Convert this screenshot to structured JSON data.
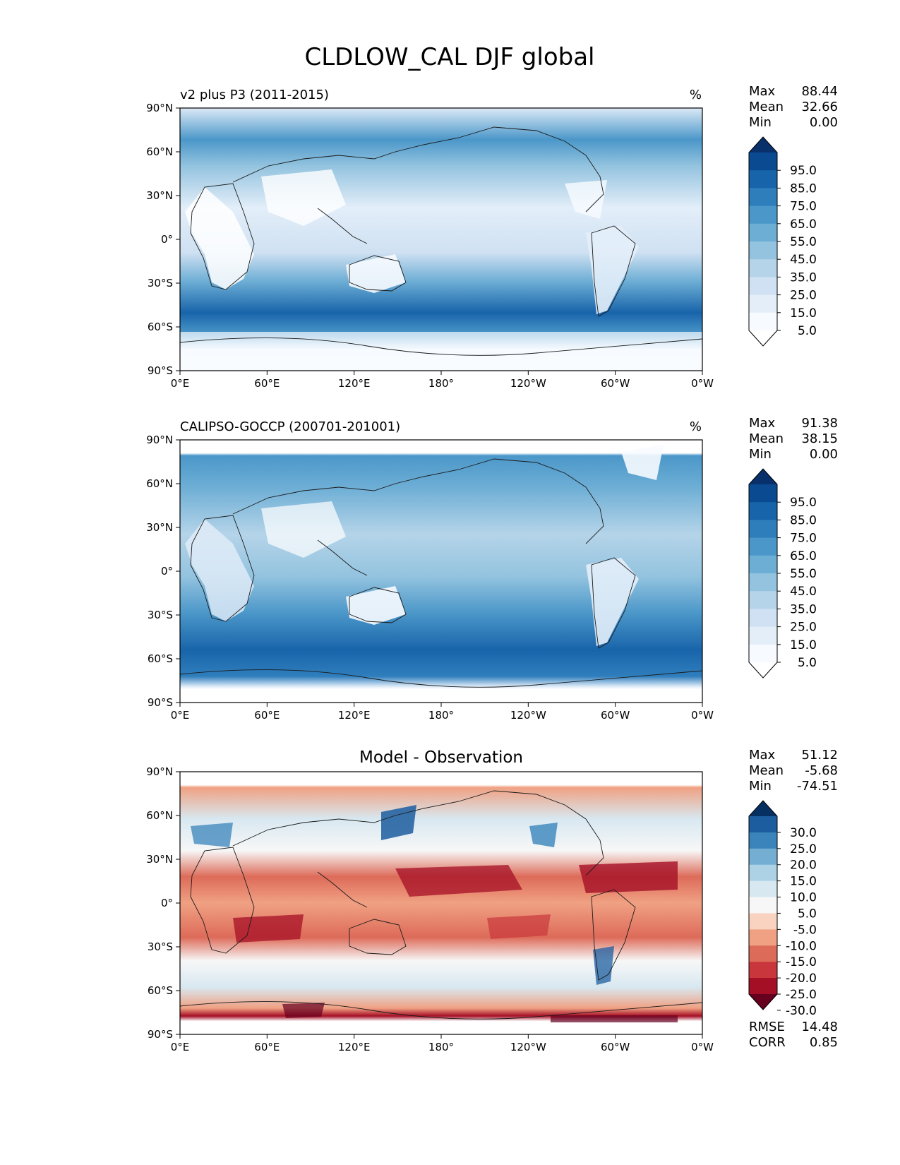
{
  "figure": {
    "title": "CLDLOW_CAL DJF global"
  },
  "axes_labels": {
    "lat_ticks": [
      "90°N",
      "60°N",
      "30°N",
      "0°",
      "30°S",
      "60°S",
      "90°S"
    ],
    "lon_ticks": [
      "0°E",
      "60°E",
      "120°E",
      "180°",
      "120°W",
      "60°W",
      "0°W"
    ]
  },
  "panels": [
    {
      "id": "model",
      "left_title": "v2 plus P3 (2011-2015)",
      "center_title": "",
      "right_title": "%",
      "stats": [
        {
          "label": "Max",
          "value": "88.44"
        },
        {
          "label": "Mean",
          "value": "32.66"
        },
        {
          "label": "Min",
          "value": "0.00"
        }
      ],
      "colorbar": {
        "colors": [
          "#ffffff",
          "#f7fbff",
          "#e3eef9",
          "#cfe1f2",
          "#b5d4e9",
          "#93c3df",
          "#6daed5",
          "#4b97c9",
          "#2f7ebc",
          "#1864aa",
          "#0a4a90",
          "#08306b"
        ],
        "labels": [
          "95.0",
          "85.0",
          "75.0",
          "65.0",
          "55.0",
          "45.0",
          "35.0",
          "25.0",
          "15.0",
          "5.0"
        ]
      },
      "extra_stats": []
    },
    {
      "id": "obs",
      "left_title": "CALIPSO-GOCCP (200701-201001)",
      "center_title": "",
      "right_title": "%",
      "stats": [
        {
          "label": "Max",
          "value": "91.38"
        },
        {
          "label": "Mean",
          "value": "38.15"
        },
        {
          "label": "Min",
          "value": "0.00"
        }
      ],
      "colorbar": {
        "colors": [
          "#ffffff",
          "#f7fbff",
          "#e3eef9",
          "#cfe1f2",
          "#b5d4e9",
          "#93c3df",
          "#6daed5",
          "#4b97c9",
          "#2f7ebc",
          "#1864aa",
          "#0a4a90",
          "#08306b"
        ],
        "labels": [
          "95.0",
          "85.0",
          "75.0",
          "65.0",
          "55.0",
          "45.0",
          "35.0",
          "25.0",
          "15.0",
          "5.0"
        ]
      },
      "extra_stats": []
    },
    {
      "id": "diff",
      "left_title": "",
      "center_title": "Model - Observation",
      "right_title": "",
      "stats": [
        {
          "label": "Max",
          "value": "51.12"
        },
        {
          "label": "Mean",
          "value": "-5.68"
        },
        {
          "label": "Min",
          "value": "-74.51"
        }
      ],
      "colorbar": {
        "colors": [
          "#67001f",
          "#a50f26",
          "#c9373c",
          "#dd6b59",
          "#f0a183",
          "#f9d3bf",
          "#f7f7f7",
          "#d8e8f1",
          "#add2e6",
          "#74aed3",
          "#3a84bb",
          "#1c5d9f",
          "#053061"
        ],
        "labels": [
          "30.0",
          "25.0",
          "20.0",
          "15.0",
          "10.0",
          "5.0",
          "-5.0",
          "-10.0",
          "-15.0",
          "-20.0",
          "-25.0",
          "-30.0"
        ]
      },
      "extra_stats": [
        {
          "label": "RMSE",
          "value": "14.48"
        },
        {
          "label": "CORR",
          "value": "0.85"
        }
      ]
    }
  ],
  "colors": {
    "coastline": "#1a1a1a",
    "frame": "#000000"
  }
}
